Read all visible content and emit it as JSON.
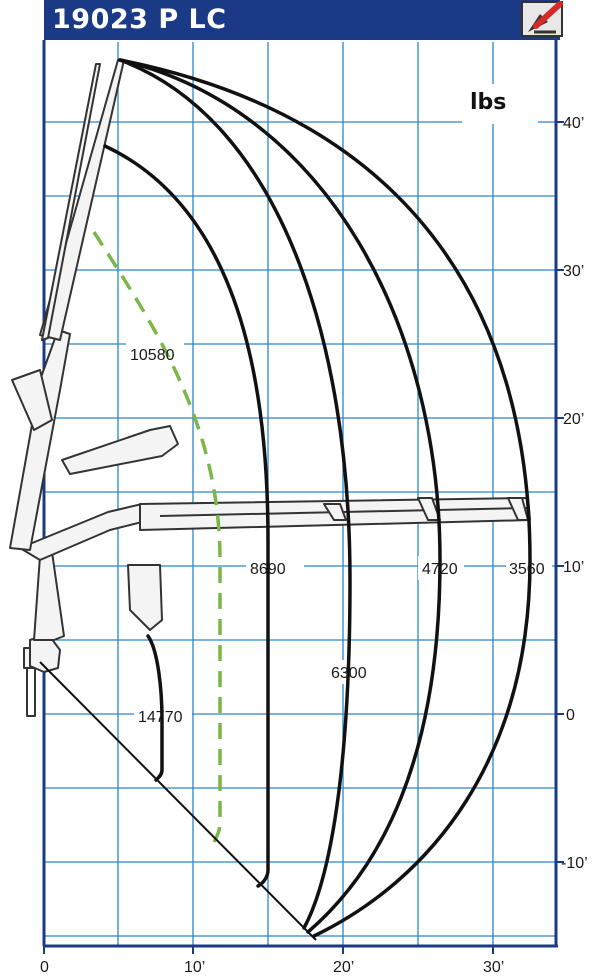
{
  "header": {
    "title": "19023 P LC",
    "unit_label": "lbs"
  },
  "x_ticks": [
    "0",
    "10’",
    "20’",
    "30’"
  ],
  "y_ticks": [
    "40’",
    "30’",
    "20’",
    "10’",
    "0",
    "-10’"
  ],
  "curve_labels": [
    "10580",
    "14770",
    "8690",
    "6300",
    "4720",
    "3560"
  ],
  "colors": {
    "header": "#1a3a86",
    "grid": "#2a86c8",
    "curve": "#111111",
    "dashed_curve": "#7ab648",
    "crane": "#333333"
  },
  "icons": {
    "logo": "crane-logo-icon"
  }
}
